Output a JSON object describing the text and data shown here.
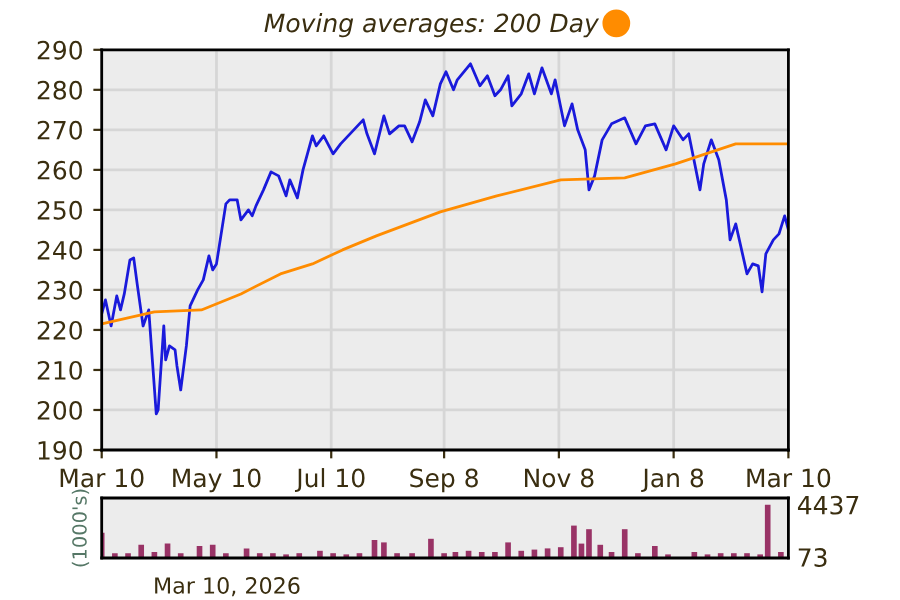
{
  "chart_data": [
    {
      "type": "line",
      "legend": "top",
      "grid": true,
      "marker": "none",
      "line_style": "solid",
      "xlim": [
        "2025-03-10",
        "2026-03-10"
      ],
      "xticks": [
        {
          "value": "2025-03-10",
          "label": "Mar 10"
        },
        {
          "value": "2025-05-10",
          "label": "May 10"
        },
        {
          "value": "2025-07-10",
          "label": "Jul 10"
        },
        {
          "value": "2025-09-08",
          "label": "Sep 8"
        },
        {
          "value": "2025-11-08",
          "label": "Nov 8"
        },
        {
          "value": "2026-01-08",
          "label": "Jan 8"
        },
        {
          "value": "2026-03-10",
          "label": "Mar 10"
        }
      ],
      "ylim": [
        190,
        290
      ],
      "yticks": [
        190,
        200,
        210,
        220,
        230,
        240,
        250,
        260,
        270,
        280,
        290
      ],
      "series": [
        {
          "color": "#1a1adb",
          "x": [
            "2025-03-10",
            "2025-03-12",
            "2025-03-15",
            "2025-03-18",
            "2025-03-20",
            "2025-03-22",
            "2025-03-25",
            "2025-03-27",
            "2025-03-29",
            "2025-04-01",
            "2025-04-04",
            "2025-04-06",
            "2025-04-08",
            "2025-04-09",
            "2025-04-12",
            "2025-04-13",
            "2025-04-15",
            "2025-04-18",
            "2025-04-19",
            "2025-04-21",
            "2025-04-24",
            "2025-04-26",
            "2025-04-30",
            "2025-05-03",
            "2025-05-06",
            "2025-05-08",
            "2025-05-10",
            "2025-05-15",
            "2025-05-17",
            "2025-05-21",
            "2025-05-23",
            "2025-05-27",
            "2025-05-29",
            "2025-05-31",
            "2025-06-04",
            "2025-06-08",
            "2025-06-12",
            "2025-06-16",
            "2025-06-18",
            "2025-06-22",
            "2025-06-25",
            "2025-06-30",
            "2025-07-02",
            "2025-07-06",
            "2025-07-11",
            "2025-07-15",
            "2025-07-22",
            "2025-07-27",
            "2025-07-29",
            "2025-08-02",
            "2025-08-07",
            "2025-08-10",
            "2025-08-15",
            "2025-08-18",
            "2025-08-22",
            "2025-08-26",
            "2025-08-29",
            "2025-09-02",
            "2025-09-06",
            "2025-09-09",
            "2025-09-13",
            "2025-09-15",
            "2025-09-22",
            "2025-09-27",
            "2025-10-01",
            "2025-10-05",
            "2025-10-08",
            "2025-10-12",
            "2025-10-14",
            "2025-10-19",
            "2025-10-23",
            "2025-10-26",
            "2025-10-30",
            "2025-11-04",
            "2025-11-06",
            "2025-11-11",
            "2025-11-15",
            "2025-11-18",
            "2025-11-22",
            "2025-11-24",
            "2025-11-27",
            "2025-12-01",
            "2025-12-06",
            "2025-12-13",
            "2025-12-19",
            "2025-12-24",
            "2025-12-29",
            "2026-01-04",
            "2026-01-08",
            "2026-01-13",
            "2026-01-16",
            "2026-01-22",
            "2026-01-24",
            "2026-01-28",
            "2026-02-01",
            "2026-02-05",
            "2026-02-07",
            "2026-02-10",
            "2026-02-16",
            "2026-02-19",
            "2026-02-22",
            "2026-02-24",
            "2026-02-26",
            "2026-03-02",
            "2026-03-05",
            "2026-03-08",
            "2026-03-10"
          ],
          "values": [
            224,
            227.5,
            221,
            228.5,
            225,
            229,
            237.5,
            238,
            231,
            221,
            225,
            212,
            199,
            200,
            221,
            212.5,
            216,
            215,
            211,
            205,
            216,
            226,
            230,
            232.5,
            238.5,
            235,
            236.5,
            251.5,
            252.5,
            252.5,
            247.5,
            250,
            248.5,
            251,
            255,
            259.5,
            258.5,
            253.5,
            257.5,
            253,
            260,
            268.5,
            266,
            268.5,
            264,
            266.5,
            270,
            272.5,
            269,
            264,
            273.5,
            269,
            271,
            271,
            267,
            272,
            277.5,
            273.5,
            281.5,
            284.5,
            280,
            282.5,
            286.5,
            281,
            283.5,
            278.5,
            280,
            283.5,
            276,
            279,
            284,
            279,
            285.5,
            279,
            282.5,
            271,
            276.5,
            270,
            265,
            255,
            258.5,
            267.5,
            271.5,
            273,
            266.5,
            271,
            271.5,
            265,
            271,
            267.5,
            269,
            255,
            261.5,
            267.5,
            262.5,
            252.5,
            242.5,
            246.5,
            234,
            236.5,
            236,
            229.5,
            239,
            242.5,
            244,
            248.5,
            245
          ]
        },
        {
          "name": "Moving averages: 200 Day",
          "color": "#ff8c00",
          "x": [
            "2025-03-10",
            "2025-04-07",
            "2025-05-02",
            "2025-05-23",
            "2025-06-13",
            "2025-06-30",
            "2025-07-16",
            "2025-08-03",
            "2025-09-06",
            "2025-10-06",
            "2025-11-09",
            "2025-12-13",
            "2026-01-09",
            "2026-02-10",
            "2026-03-10"
          ],
          "values": [
            221.5,
            224.5,
            225,
            229,
            234,
            236.5,
            240,
            243.5,
            249.5,
            253.5,
            257.5,
            258,
            261.5,
            266.5,
            266.5
          ]
        }
      ]
    },
    {
      "type": "bar",
      "tick_labels": "y",
      "ylabel": "(1000's)",
      "grid": false,
      "xlim": [
        "2025-03-10",
        "2026-03-10"
      ],
      "ylim": [
        0,
        5000
      ],
      "yticks": [
        73,
        4437
      ],
      "annotations": [
        "Mar 10, 2026"
      ],
      "series": [
        {
          "color": "#993366",
          "x": [
            "2025-03-10",
            "2025-03-17",
            "2025-03-24",
            "2025-03-31",
            "2025-04-07",
            "2025-04-14",
            "2025-04-21",
            "2025-05-01",
            "2025-05-08",
            "2025-05-15",
            "2025-05-26",
            "2025-06-02",
            "2025-06-09",
            "2025-06-16",
            "2025-06-23",
            "2025-07-04",
            "2025-07-11",
            "2025-07-18",
            "2025-07-25",
            "2025-08-02",
            "2025-08-07",
            "2025-08-14",
            "2025-08-22",
            "2025-09-01",
            "2025-09-08",
            "2025-09-14",
            "2025-09-21",
            "2025-09-28",
            "2025-10-05",
            "2025-10-12",
            "2025-10-19",
            "2025-10-26",
            "2025-11-02",
            "2025-11-09",
            "2025-11-16",
            "2025-11-20",
            "2025-11-24",
            "2025-11-30",
            "2025-12-06",
            "2025-12-13",
            "2025-12-20",
            "2025-12-29",
            "2026-01-05",
            "2026-01-12",
            "2026-01-19",
            "2026-01-26",
            "2026-02-02",
            "2026-02-09",
            "2026-02-16",
            "2026-02-23",
            "2026-02-27",
            "2026-03-06"
          ],
          "values": [
            2100,
            400,
            400,
            1100,
            500,
            1200,
            400,
            1000,
            1100,
            400,
            800,
            400,
            400,
            300,
            400,
            600,
            400,
            300,
            400,
            1500,
            1300,
            400,
            400,
            1600,
            400,
            500,
            600,
            500,
            500,
            1300,
            600,
            700,
            800,
            900,
            2700,
            1200,
            2400,
            1100,
            500,
            2400,
            400,
            1000,
            300,
            73,
            500,
            300,
            400,
            400,
            400,
            300,
            4437,
            500
          ]
        }
      ]
    }
  ]
}
